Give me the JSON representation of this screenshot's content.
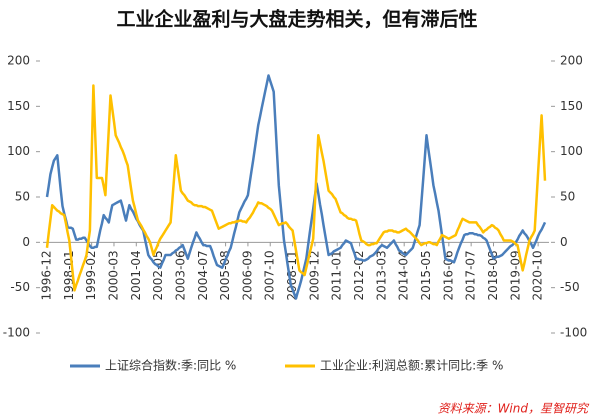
{
  "chart_data": {
    "type": "line",
    "title": "工业企业盈利与大盘走势相关，但有滞后性",
    "source": "资料来源：Wind，星智研究",
    "categories": [
      "1996-12",
      null,
      null,
      null,
      null,
      null,
      null,
      null,
      null,
      null,
      null,
      null,
      null,
      "1998-01",
      null,
      null,
      null,
      null,
      null,
      null,
      null,
      null,
      null,
      null,
      null,
      null,
      "1999-02",
      null,
      null,
      null,
      null,
      null,
      null,
      null,
      null,
      null,
      null,
      null,
      null,
      "2000-03",
      null,
      null,
      null,
      null,
      null,
      null,
      null,
      null,
      null,
      null,
      null,
      null,
      "2001-04",
      null,
      null,
      null,
      null,
      null,
      null,
      null,
      null,
      null,
      null,
      null,
      null,
      "2002-05",
      null,
      null,
      null,
      null,
      null,
      null,
      null,
      null,
      null,
      null,
      null,
      null,
      "2003-06",
      null,
      null,
      null,
      null,
      null,
      null,
      null,
      null,
      null,
      null,
      null,
      null,
      "2004-07",
      null,
      null,
      null,
      null,
      null,
      null,
      null,
      null,
      null,
      null,
      null,
      null,
      "2005-08",
      null,
      null,
      null,
      null,
      null,
      null,
      null,
      null,
      null,
      null,
      null,
      null,
      "2006-09",
      null,
      null,
      null,
      null,
      null,
      null,
      null,
      null,
      null,
      null,
      null,
      null,
      "2007-10",
      null,
      null,
      null,
      null,
      null,
      null,
      null,
      null,
      null,
      null,
      null,
      null,
      "2008-11",
      null,
      null,
      null,
      null,
      null,
      null,
      null,
      null,
      null,
      null,
      null,
      null,
      "2009-12",
      null,
      null,
      null,
      null,
      null,
      null,
      null,
      null,
      null,
      null,
      null,
      null,
      "2011-01",
      null,
      null,
      null,
      null,
      null,
      null,
      null,
      null,
      null,
      null,
      null,
      null,
      "2012-02",
      null,
      null,
      null,
      null,
      null,
      null,
      null,
      null,
      null,
      null,
      null,
      null,
      "2013-03",
      null,
      null,
      null,
      null,
      null,
      null,
      null,
      null,
      null,
      null,
      null,
      null,
      "2014-04",
      null,
      null,
      null,
      null,
      null,
      null,
      null,
      null,
      null,
      null,
      null,
      null,
      "2015-05",
      null,
      null,
      null,
      null,
      null,
      null,
      null,
      null,
      null,
      null,
      null,
      null,
      "2016-06",
      null,
      null,
      null,
      null,
      null,
      null,
      null,
      null,
      null,
      null,
      null,
      null,
      "2017-07",
      null,
      null,
      null,
      null,
      null,
      null,
      null,
      null,
      null,
      null,
      null,
      null,
      "2018-08",
      null,
      null,
      null,
      null,
      null,
      null,
      null,
      null,
      null,
      null,
      null,
      null,
      "2019-09",
      null,
      null,
      null,
      null,
      null,
      null,
      null,
      null,
      null,
      null,
      null,
      null,
      "2020-10",
      null,
      null,
      null,
      null
    ],
    "series": [
      {
        "name": "上证综合指数:季:同比 %",
        "color": "#4a7ebb",
        "values": [
          50,
          62,
          75,
          83,
          90,
          93,
          96,
          77,
          58,
          40,
          32,
          25,
          17,
          16,
          16,
          15,
          9,
          3,
          3,
          4,
          4,
          5,
          5,
          2,
          -1,
          -4,
          -6,
          -6,
          -5,
          -5,
          4,
          13,
          21,
          30,
          27,
          25,
          22,
          32,
          41,
          42,
          43,
          44,
          45,
          46,
          39,
          31,
          24,
          33,
          41,
          37,
          34,
          30,
          26,
          23,
          19,
          16,
          13,
          4,
          -5,
          -14,
          -17,
          -19,
          -22,
          -24,
          -25,
          -27,
          -28,
          -23,
          -19,
          -14,
          -14,
          -14,
          -14,
          -12,
          -11,
          -9,
          -8,
          -6,
          -5,
          -3,
          -8,
          -13,
          -18,
          -12,
          -6,
          0,
          5,
          11,
          7,
          4,
          0,
          -3,
          -3,
          -4,
          -4,
          -4,
          -9,
          -15,
          -20,
          -25,
          -26,
          -27,
          -28,
          -24,
          -19,
          -15,
          -10,
          -6,
          2,
          10,
          17,
          25,
          33,
          37,
          41,
          45,
          48,
          52,
          65,
          78,
          90,
          103,
          116,
          129,
          138,
          148,
          157,
          166,
          175,
          184,
          178,
          172,
          166,
          132,
          97,
          63,
          43,
          22,
          2,
          -10,
          -23,
          -35,
          -47,
          -52,
          -57,
          -62,
          -55,
          -49,
          -42,
          -34,
          -26,
          -18,
          -4,
          10,
          24,
          37,
          51,
          65,
          54,
          42,
          31,
          19,
          8,
          -3,
          -14,
          -13,
          -12,
          -10,
          -9,
          -8,
          -7,
          -6,
          -3,
          -1,
          2,
          1,
          0,
          -1,
          -7,
          -12,
          -18,
          -18,
          -19,
          -19,
          -20,
          -20,
          -19,
          -18,
          -16,
          -15,
          -14,
          -12,
          -10,
          -7,
          -5,
          -3,
          -4,
          -5,
          -6,
          -4,
          -2,
          0,
          2,
          -2,
          -5,
          -9,
          -10,
          -12,
          -13,
          -14,
          -12,
          -10,
          -8,
          -6,
          0,
          7,
          13,
          19,
          44,
          68,
          93,
          118,
          104,
          91,
          77,
          63,
          54,
          44,
          35,
          22,
          8,
          -5,
          -18,
          -19,
          -20,
          -20,
          -21,
          -22,
          -17,
          -11,
          -6,
          -1,
          3,
          8,
          9,
          9,
          10,
          10,
          10,
          9,
          9,
          8,
          8,
          7,
          5,
          4,
          2,
          -3,
          -8,
          -13,
          -18,
          -17,
          -16,
          -16,
          -15,
          -14,
          -12,
          -10,
          -8,
          -6,
          -4,
          -3,
          -1,
          0,
          3,
          7,
          10,
          13,
          10,
          8,
          5,
          1,
          -2,
          -6,
          -2,
          2,
          7,
          11,
          14,
          18,
          22
        ]
      },
      {
        "name": "工业企业:利润总额:累计同比:季 %",
        "color": "#ffc000",
        "axis": "y2",
        "values": [
          -6,
          10,
          25,
          41,
          39,
          37,
          35,
          34,
          32,
          31,
          30,
          21,
          11,
          2,
          -16,
          -35,
          -53,
          -47,
          -42,
          -36,
          -31,
          -25,
          -20,
          -14,
          0,
          13,
          93,
          173,
          122,
          71,
          71,
          71,
          71,
          62,
          52,
          89,
          125,
          162,
          147,
          133,
          118,
          114,
          110,
          105,
          101,
          96,
          90,
          85,
          72,
          59,
          46,
          39,
          31,
          24,
          21,
          18,
          14,
          11,
          7,
          4,
          0,
          -7,
          -14,
          -9,
          -5,
          0,
          4,
          7,
          10,
          13,
          16,
          19,
          22,
          47,
          71,
          96,
          83,
          70,
          57,
          54,
          52,
          49,
          46,
          45,
          44,
          42,
          41,
          41,
          40,
          40,
          40,
          39,
          39,
          38,
          37,
          36,
          35,
          30,
          25,
          20,
          15,
          16,
          17,
          18,
          19,
          20,
          21,
          21,
          22,
          22,
          23,
          23,
          24,
          24,
          23,
          23,
          22,
          25,
          27,
          30,
          33,
          37,
          40,
          44,
          43,
          43,
          42,
          41,
          40,
          38,
          37,
          35,
          31,
          27,
          23,
          19,
          20,
          21,
          21,
          22,
          20,
          17,
          15,
          13,
          2,
          -9,
          -20,
          -31,
          -33,
          -34,
          -36,
          -28,
          -20,
          -12,
          -4,
          4,
          42,
          80,
          118,
          109,
          99,
          90,
          79,
          68,
          57,
          55,
          53,
          50,
          48,
          43,
          38,
          33,
          32,
          30,
          29,
          27,
          26,
          26,
          25,
          25,
          24,
          17,
          9,
          2,
          1,
          0,
          -2,
          -3,
          -3,
          -2,
          -2,
          -1,
          -1,
          2,
          5,
          8,
          11,
          12,
          12,
          13,
          13,
          13,
          12,
          12,
          11,
          11,
          12,
          13,
          14,
          15,
          13,
          12,
          10,
          8,
          6,
          4,
          2,
          -1,
          -3,
          -2,
          -1,
          -1,
          0,
          0,
          -1,
          -2,
          -2,
          -3,
          1,
          4,
          8,
          7,
          6,
          5,
          4,
          5,
          6,
          7,
          8,
          13,
          17,
          22,
          26,
          25,
          24,
          23,
          22,
          22,
          22,
          22,
          22,
          19,
          17,
          14,
          11,
          13,
          14,
          16,
          17,
          19,
          18,
          16,
          15,
          13,
          9,
          6,
          2,
          2,
          2,
          2,
          2,
          1,
          0,
          -2,
          -3,
          -12,
          -22,
          -31,
          -23,
          -14,
          -6,
          2,
          6,
          9,
          13,
          45,
          77,
          108,
          140,
          104,
          68
        ]
      }
    ],
    "ylim": [
      -100,
      200
    ],
    "yticks": [
      -100,
      -50,
      0,
      50,
      100,
      150,
      200
    ],
    "y2lim": [
      -100,
      200
    ],
    "y2ticks": [
      -100,
      -50,
      0,
      50,
      100,
      150,
      200
    ],
    "grid": false,
    "legend": "bottom"
  }
}
